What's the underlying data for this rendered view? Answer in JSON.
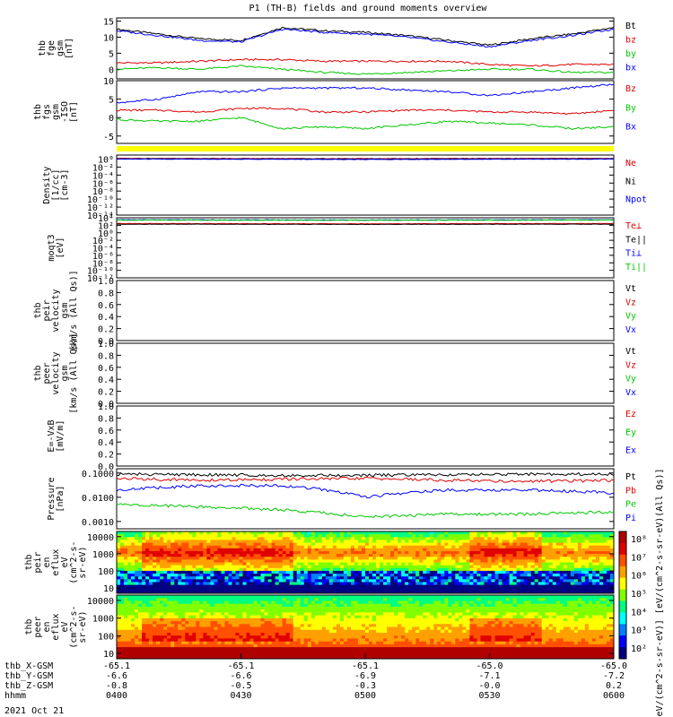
{
  "title": "P1 (TH-B) fields and ground moments overview",
  "date": "2021 Oct 21",
  "colors": {
    "black": "#000000",
    "red": "#e00000",
    "green": "#00c800",
    "blue": "#0000ff",
    "yellow": "#ffff00",
    "status_bar": "#ffff00"
  },
  "x_axis": {
    "ticks": [
      "0400",
      "0430",
      "0500",
      "0530",
      "0600"
    ],
    "rows": [
      {
        "label": "thb_X-GSM",
        "values": [
          "-65.1",
          "-65.1",
          "-65.1",
          "-65.0",
          "-65.0"
        ]
      },
      {
        "label": "thb_Y-GSM",
        "values": [
          "-6.6",
          "-6.6",
          "-6.9",
          "-7.1",
          "-7.2"
        ]
      },
      {
        "label": "thb_Z-GSM",
        "values": [
          "-0.8",
          "-0.5",
          "-0.3",
          "-0.0",
          "0.2"
        ]
      },
      {
        "label": "hhmm",
        "values": [
          "0400",
          "0430",
          "0500",
          "0530",
          "0600"
        ]
      }
    ]
  },
  "chart_data": [
    {
      "type": "line",
      "ylabel": [
        "thb",
        "fge",
        "gsm",
        "[nT]"
      ],
      "ylim": [
        -3,
        16
      ],
      "yticks": [
        "15",
        "10",
        "5",
        "0"
      ],
      "series": [
        {
          "name": "Bt",
          "color": "#000000",
          "x": [
            "04:00",
            "04:10",
            "04:20",
            "04:30",
            "04:40",
            "04:50",
            "05:00",
            "05:10",
            "05:20",
            "05:30",
            "05:40",
            "05:50",
            "06:00"
          ],
          "values": [
            12.5,
            11,
            9.5,
            9,
            13,
            12,
            11.5,
            10.5,
            9,
            7.5,
            9.5,
            11,
            13
          ]
        },
        {
          "name": "bz",
          "color": "#e00000",
          "x": [
            "04:00",
            "04:10",
            "04:20",
            "04:30",
            "04:40",
            "04:50",
            "05:00",
            "05:10",
            "05:20",
            "05:30",
            "05:40",
            "05:50",
            "06:00"
          ],
          "values": [
            2,
            2,
            2.5,
            3,
            3,
            2.5,
            2.5,
            2.5,
            2.5,
            1.5,
            1,
            1.5,
            1.5
          ]
        },
        {
          "name": "by",
          "color": "#00c800",
          "x": [
            "04:00",
            "04:10",
            "04:20",
            "04:30",
            "04:40",
            "04:50",
            "05:00",
            "05:10",
            "05:20",
            "05:30",
            "05:40",
            "05:50",
            "06:00"
          ],
          "values": [
            0,
            0.5,
            0,
            1,
            0,
            -1,
            -1.5,
            -1,
            -0.5,
            0,
            0,
            -1,
            -1
          ]
        },
        {
          "name": "bx",
          "color": "#0000ff",
          "x": [
            "04:00",
            "04:10",
            "04:20",
            "04:30",
            "04:40",
            "04:50",
            "05:00",
            "05:10",
            "05:20",
            "05:30",
            "05:40",
            "05:50",
            "06:00"
          ],
          "values": [
            12,
            10.5,
            9,
            8.5,
            12.5,
            11.5,
            11,
            10,
            8.5,
            7,
            9,
            10.5,
            12.5
          ]
        }
      ]
    },
    {
      "type": "line",
      "ylabel": [
        "thb",
        "fgs",
        "gsm",
        "-ISO",
        "[nT]"
      ],
      "ylim": [
        -7,
        10
      ],
      "yticks": [
        "10",
        "5",
        "0",
        "-5"
      ],
      "series": [
        {
          "name": "Bz",
          "color": "#e00000",
          "x": [
            "04:00",
            "04:10",
            "04:20",
            "04:30",
            "04:40",
            "04:50",
            "05:00",
            "05:10",
            "05:20",
            "05:30",
            "05:40",
            "05:50",
            "06:00"
          ],
          "values": [
            2,
            2,
            1.5,
            2.5,
            2.5,
            1.5,
            1.5,
            2,
            2,
            1.5,
            1.5,
            1,
            2
          ]
        },
        {
          "name": "By",
          "color": "#00c800",
          "x": [
            "04:00",
            "04:10",
            "04:20",
            "04:30",
            "04:40",
            "04:50",
            "05:00",
            "05:10",
            "05:20",
            "05:30",
            "05:40",
            "05:50",
            "06:00"
          ],
          "values": [
            -0.5,
            -1,
            -1,
            0,
            -3,
            -2.5,
            -3,
            -2,
            -1,
            -1.5,
            -2,
            -3,
            -2.5
          ]
        },
        {
          "name": "Bx",
          "color": "#0000ff",
          "x": [
            "04:00",
            "04:10",
            "04:20",
            "04:30",
            "04:40",
            "04:50",
            "05:00",
            "05:10",
            "05:20",
            "05:30",
            "05:40",
            "05:50",
            "06:00"
          ],
          "values": [
            4,
            5,
            7,
            7,
            8,
            8,
            8,
            7.5,
            7,
            6,
            7,
            8,
            9
          ]
        }
      ]
    },
    {
      "type": "line",
      "ylabel": [
        "Density",
        "[1/cc]",
        "[cm-3]"
      ],
      "yscale": "log",
      "ylim": [
        1e-14,
        10
      ],
      "yticks": [
        "10⁰",
        "10⁻²",
        "10⁻⁴",
        "10⁻⁶",
        "10⁻⁸",
        "10⁻¹⁰",
        "10⁻¹²",
        "10⁻¹⁴"
      ],
      "series": [
        {
          "name": "Ne",
          "color": "#e00000",
          "x": [
            "04:00",
            "05:00",
            "06:00"
          ],
          "values": [
            1.5,
            1.3,
            1.5
          ]
        },
        {
          "name": "Ni",
          "color": "#000000",
          "x": [
            "04:00",
            "05:00",
            "06:00"
          ],
          "values": [
            1.2,
            1.0,
            1.2
          ]
        },
        {
          "name": "Npot",
          "color": "#0000ff",
          "x": [
            "04:00",
            "05:00",
            "06:00"
          ],
          "values": [
            1.0,
            0.8,
            1.0
          ]
        }
      ]
    },
    {
      "type": "line",
      "ylabel": [
        "moqt3",
        "[eV]"
      ],
      "yscale": "log",
      "ylim": [
        1e-12,
        10000.0
      ],
      "yticks": [
        "10⁴",
        "10²",
        "10⁰",
        "10⁻²",
        "10⁻⁴",
        "10⁻⁶",
        "10⁻⁸",
        "10⁻¹⁰",
        "10⁻¹²"
      ],
      "series": [
        {
          "name": "Te⊥",
          "color": "#e00000",
          "x": [
            "04:00",
            "05:00",
            "06:00"
          ],
          "values": [
            300,
            250,
            300
          ]
        },
        {
          "name": "Te||",
          "color": "#000000",
          "x": [
            "04:00",
            "05:00",
            "06:00"
          ],
          "values": [
            200,
            180,
            200
          ]
        },
        {
          "name": "Ti⊥",
          "color": "#0000ff",
          "x": [
            "04:00",
            "05:00",
            "06:00"
          ],
          "values": [
            3000,
            2500,
            3000
          ]
        },
        {
          "name": "Ti||",
          "color": "#00c800",
          "x": [
            "04:00",
            "05:00",
            "06:00"
          ],
          "values": [
            2500,
            2200,
            2500
          ]
        }
      ]
    },
    {
      "type": "line",
      "ylabel": [
        "thb",
        "peir",
        "velocity",
        "gsm",
        "[km/s (All Qs)]"
      ],
      "ylim": [
        0,
        1
      ],
      "yticks": [
        "1.0",
        "0.8",
        "0.6",
        "0.4",
        "0.2",
        "0.0"
      ],
      "series": [
        {
          "name": "Vt",
          "color": "#000000",
          "values": []
        },
        {
          "name": "Vz",
          "color": "#e00000",
          "values": []
        },
        {
          "name": "Vy",
          "color": "#00c800",
          "values": []
        },
        {
          "name": "Vx",
          "color": "#0000ff",
          "values": []
        }
      ]
    },
    {
      "type": "line",
      "ylabel": [
        "thb",
        "peer",
        "velocity",
        "gsm",
        "[km/s (All Qs)]"
      ],
      "ylim": [
        0,
        1
      ],
      "yticks": [
        "1.0",
        "0.8",
        "0.6",
        "0.4",
        "0.2",
        "0.0"
      ],
      "series": [
        {
          "name": "Vt",
          "color": "#000000",
          "values": []
        },
        {
          "name": "Vz",
          "color": "#e00000",
          "values": []
        },
        {
          "name": "Vy",
          "color": "#00c800",
          "values": []
        },
        {
          "name": "Vx",
          "color": "#0000ff",
          "values": []
        }
      ]
    },
    {
      "type": "line",
      "ylabel": [
        "E=-VxB",
        "[mV/m]"
      ],
      "ylim": [
        0,
        1
      ],
      "yticks": [
        "1.0",
        "0.8",
        "0.6",
        "0.4",
        "0.2",
        "0.0"
      ],
      "series": [
        {
          "name": "Ez",
          "color": "#e00000",
          "values": []
        },
        {
          "name": "Ey",
          "color": "#00c800",
          "values": []
        },
        {
          "name": "Ex",
          "color": "#0000ff",
          "values": []
        }
      ]
    },
    {
      "type": "line",
      "ylabel": [
        "Pressure",
        "[nPa]"
      ],
      "yscale": "log",
      "ylim": [
        0.0005,
        0.15
      ],
      "yticks": [
        "0.1000",
        "0.0100",
        "0.0010"
      ],
      "series": [
        {
          "name": "Pt",
          "color": "#000000",
          "x": [
            "04:00",
            "04:20",
            "04:40",
            "05:00",
            "05:20",
            "05:40",
            "06:00"
          ],
          "values": [
            0.09,
            0.085,
            0.08,
            0.08,
            0.085,
            0.09,
            0.09
          ]
        },
        {
          "name": "Pb",
          "color": "#e00000",
          "x": [
            "04:00",
            "04:20",
            "04:40",
            "05:00",
            "05:20",
            "05:40",
            "06:00"
          ],
          "values": [
            0.06,
            0.05,
            0.055,
            0.06,
            0.05,
            0.045,
            0.05
          ]
        },
        {
          "name": "Pe",
          "color": "#00c800",
          "x": [
            "04:00",
            "04:20",
            "04:40",
            "05:00",
            "05:20",
            "05:40",
            "06:00"
          ],
          "values": [
            0.005,
            0.004,
            0.003,
            0.0015,
            0.002,
            0.002,
            0.0025
          ]
        },
        {
          "name": "Pi",
          "color": "#0000ff",
          "x": [
            "04:00",
            "04:20",
            "04:40",
            "05:00",
            "05:20",
            "05:40",
            "06:00"
          ],
          "values": [
            0.02,
            0.03,
            0.03,
            0.01,
            0.02,
            0.02,
            0.015
          ]
        }
      ]
    },
    {
      "type": "heatmap",
      "ylabel": [
        "thb",
        "peir",
        "en",
        "eflux",
        "eV",
        "(cm^2-s-",
        "sr-eV)"
      ],
      "yscale": "log",
      "ylim": [
        5,
        20000
      ],
      "yticks": [
        "10000",
        "1000",
        "100",
        "10"
      ]
    },
    {
      "type": "heatmap",
      "ylabel": [
        "thb",
        "peer",
        "en",
        "eflux",
        "eV",
        "(cm^2-s-",
        "sr-eV)"
      ],
      "yscale": "log",
      "ylim": [
        5,
        20000
      ],
      "yticks": [
        "10000",
        "1000",
        "100",
        "10"
      ]
    }
  ],
  "colorbar": {
    "ticks": [
      "10⁸",
      "10⁷",
      "10⁶",
      "10⁵",
      "10⁴",
      "10³",
      "10²"
    ],
    "label": "[eV/(cm^2-s-sr-eV)] [eV/(cm^2-s-sr-eV)(All Qs)]"
  }
}
